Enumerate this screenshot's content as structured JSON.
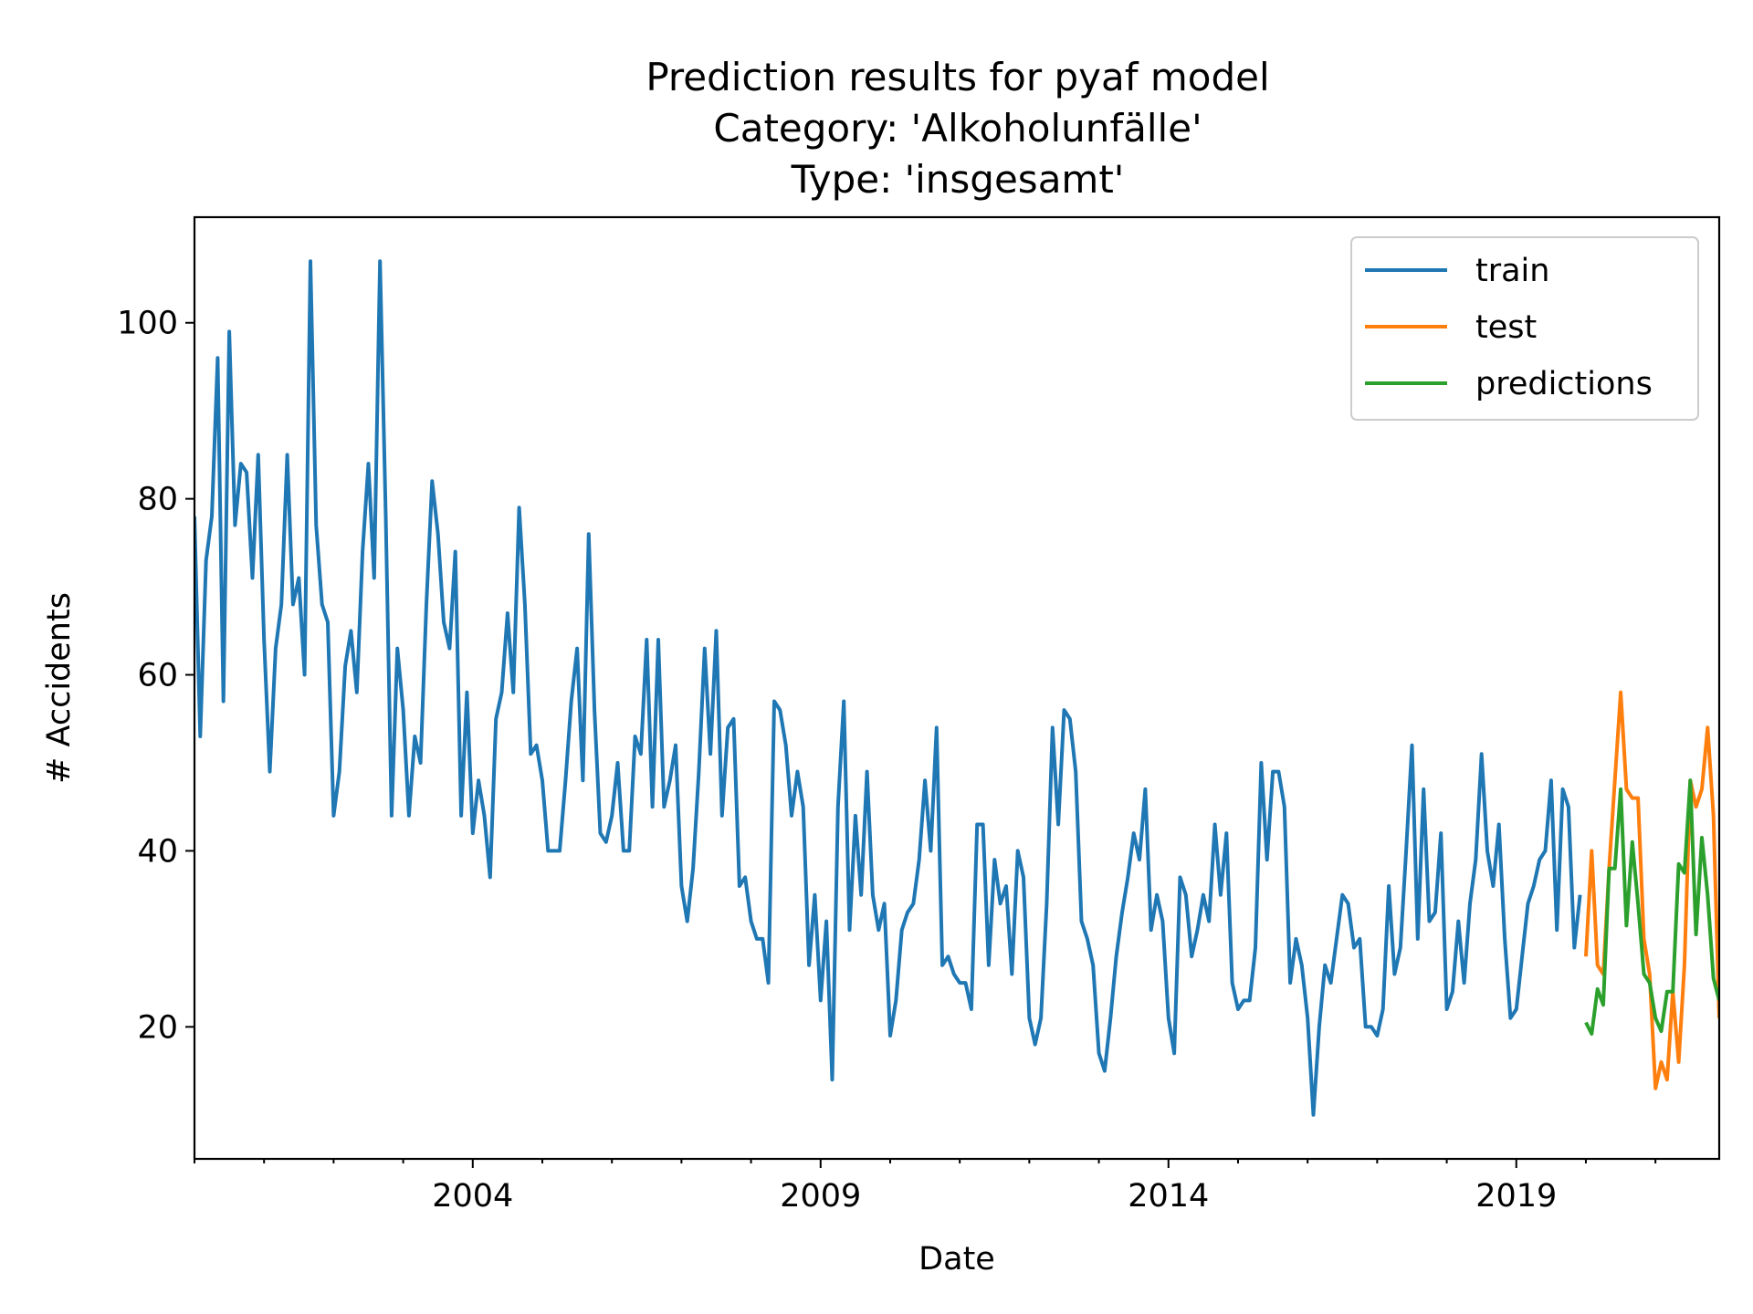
{
  "chart_data": {
    "type": "line",
    "title_lines": [
      "Prediction results for pyaf model",
      "Category: 'Alkoholunfälle'",
      "Type: 'insgesamt'"
    ],
    "xlabel": "Date",
    "ylabel": "# Accidents",
    "x_range": [
      "2000-01",
      "2021-12"
    ],
    "ylim": [
      5,
      112
    ],
    "y_ticks": [
      20,
      40,
      60,
      80,
      100
    ],
    "x_ticks": [
      "2004",
      "2009",
      "2014",
      "2019"
    ],
    "grid": false,
    "legend_position": "top-right",
    "series": [
      {
        "name": "train",
        "color": "#1f77b4",
        "start": "2000-01",
        "values": [
          78,
          53,
          73,
          78,
          96,
          57,
          99,
          77,
          84,
          83,
          71,
          85,
          64,
          49,
          63,
          68,
          85,
          68,
          71,
          60,
          107,
          77,
          68,
          66,
          44,
          49,
          61,
          65,
          58,
          74,
          84,
          71,
          107,
          78,
          44,
          63,
          56,
          44,
          53,
          50,
          68,
          82,
          76,
          66,
          63,
          74,
          44,
          58,
          42,
          48,
          44,
          37,
          55,
          58,
          67,
          58,
          79,
          68,
          51,
          52,
          48,
          40,
          40,
          40,
          48,
          57,
          63,
          48,
          76,
          56,
          42,
          41,
          44,
          50,
          40,
          40,
          53,
          51,
          64,
          45,
          64,
          45,
          48,
          52,
          36,
          32,
          38,
          49,
          63,
          51,
          65,
          44,
          54,
          55,
          36,
          37,
          32,
          30,
          30,
          25,
          57,
          56,
          52,
          44,
          49,
          45,
          27,
          35,
          23,
          32,
          14,
          45,
          57,
          31,
          44,
          35,
          49,
          35,
          31,
          34,
          19,
          23,
          31,
          33,
          34,
          39,
          48,
          40,
          54,
          27,
          28,
          26,
          25,
          25,
          22,
          43,
          43,
          27,
          39,
          34,
          36,
          26,
          40,
          37,
          21,
          18,
          21,
          34,
          54,
          43,
          56,
          55,
          49,
          32,
          30,
          27,
          17,
          15,
          21,
          28,
          33,
          37,
          42,
          39,
          47,
          31,
          35,
          32,
          21,
          17,
          37,
          35,
          28,
          31,
          35,
          32,
          43,
          35,
          42,
          25,
          22,
          23,
          23,
          29,
          50,
          39,
          49,
          49,
          45,
          25,
          30,
          27,
          21,
          10,
          20,
          27,
          25,
          30,
          35,
          34,
          29,
          30,
          20,
          20,
          19,
          22,
          36,
          26,
          29,
          40,
          52,
          30,
          47,
          32,
          33,
          42,
          22,
          24,
          32,
          25,
          34,
          39,
          51,
          40,
          36,
          43,
          30,
          21,
          22,
          28,
          34,
          36,
          39,
          40,
          48,
          31,
          47,
          45,
          29,
          35
        ]
      },
      {
        "name": "test",
        "color": "#ff7f0e",
        "start": "2020-01",
        "values": [
          28,
          40,
          27,
          26,
          38,
          48,
          58,
          47,
          46,
          46,
          30,
          26,
          13,
          16,
          14,
          24,
          16,
          27,
          48,
          45,
          47,
          54,
          44,
          21
        ]
      },
      {
        "name": "predictions",
        "color": "#2ca02c",
        "start": "2020-01",
        "values": [
          20.5,
          19.2,
          24.3,
          22.5,
          38,
          38,
          47,
          31.5,
          41,
          34,
          26,
          25,
          21,
          19.5,
          24,
          24,
          38.5,
          37.5,
          48,
          30.5,
          41.5,
          35,
          25.5,
          23
        ]
      }
    ]
  }
}
